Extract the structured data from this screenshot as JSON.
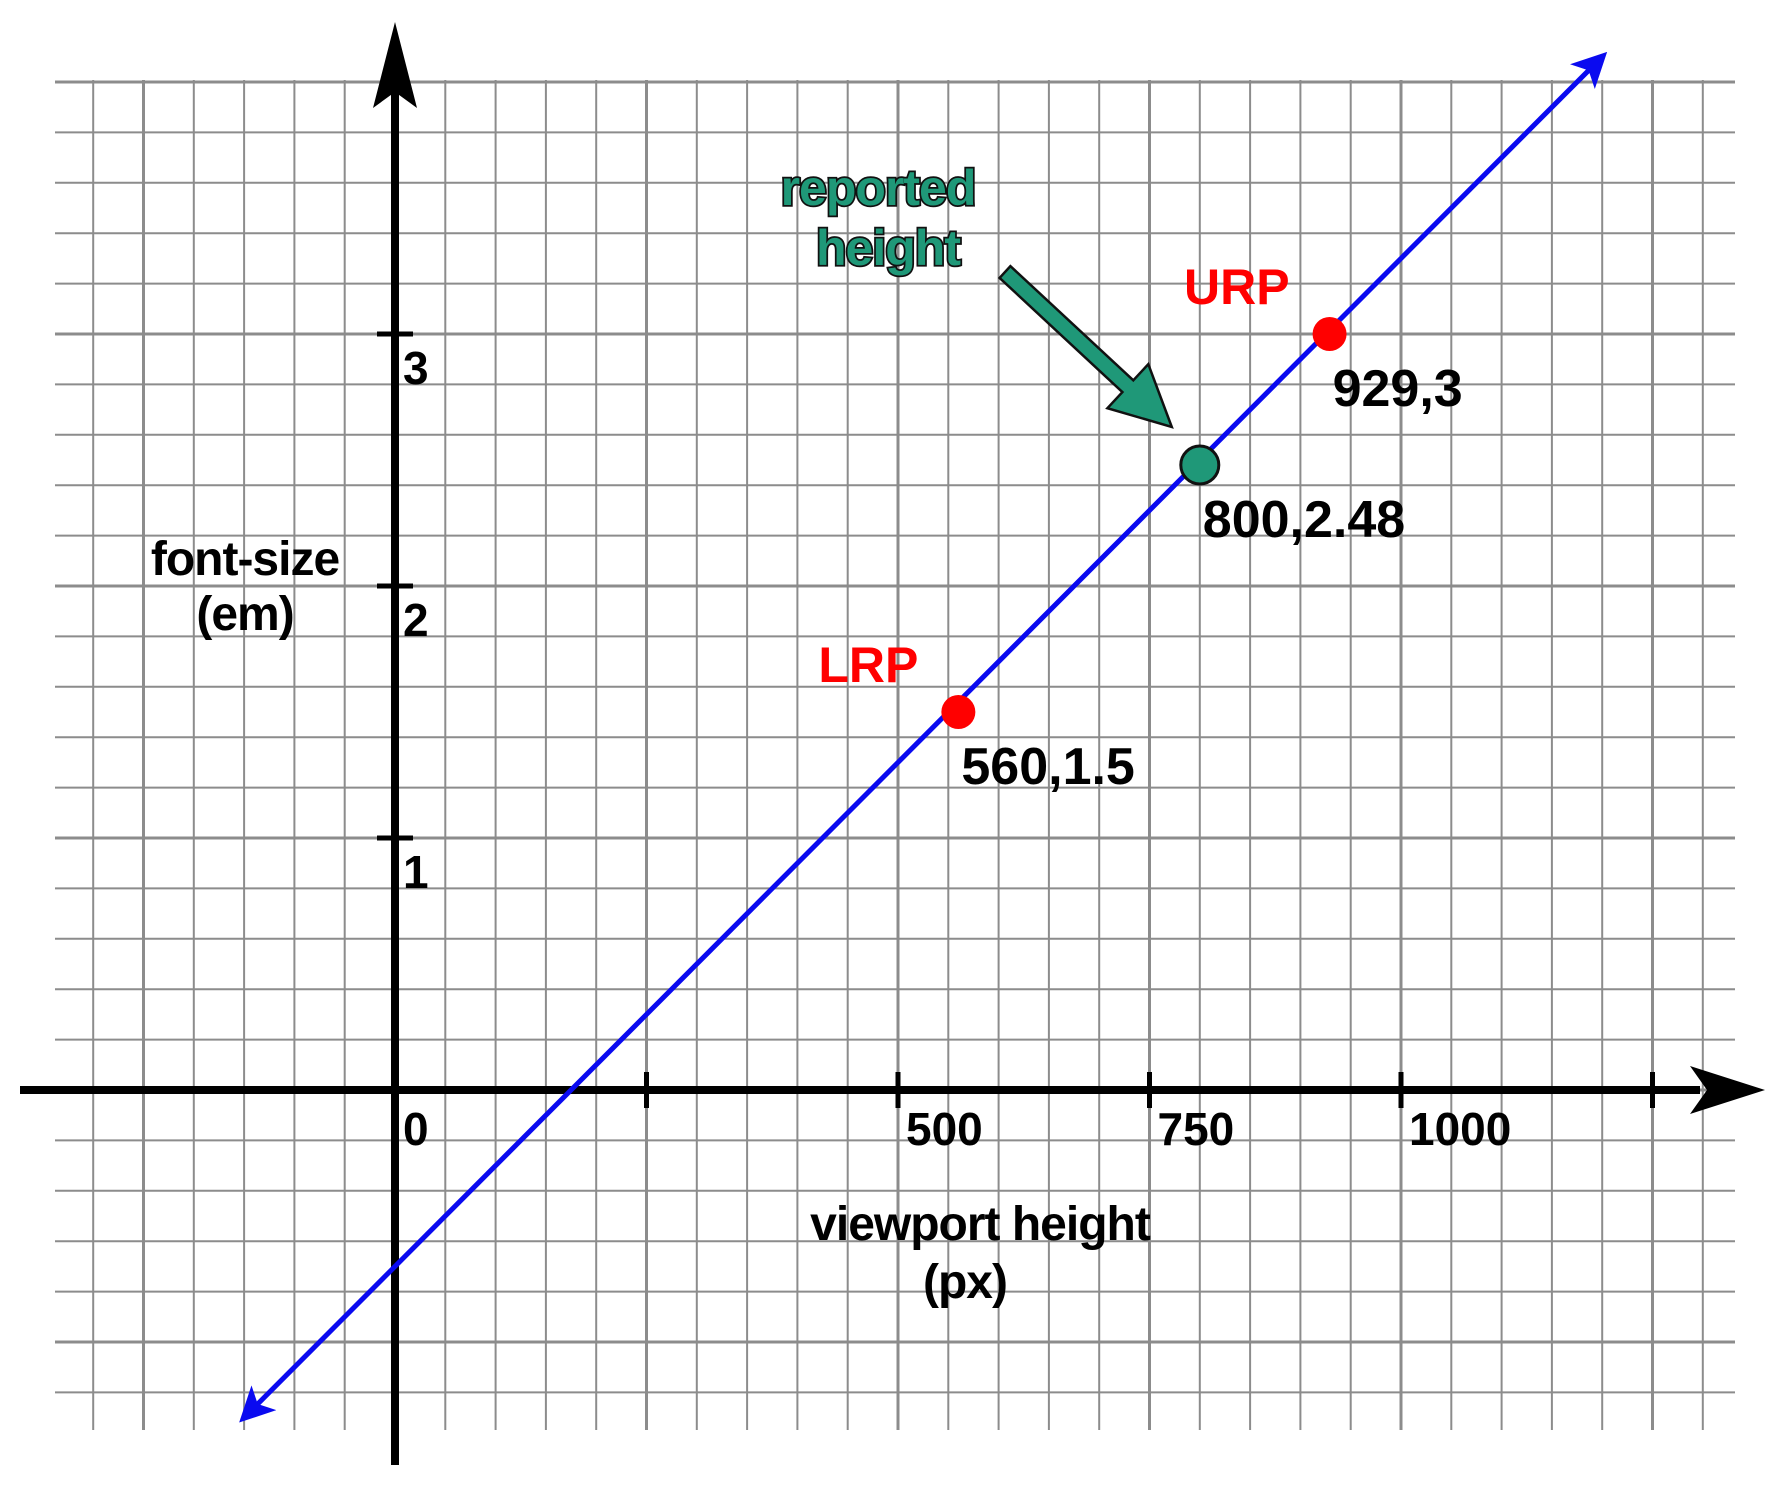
{
  "chart_data": {
    "type": "line",
    "title": "",
    "xlabel": [
      "viewport height",
      "(px)"
    ],
    "ylabel": [
      "font-size",
      "(em)"
    ],
    "x_ticks": [
      {
        "value": 0,
        "label": "0"
      },
      {
        "value": 250,
        "label": ""
      },
      {
        "value": 500,
        "label": "500"
      },
      {
        "value": 750,
        "label": "750"
      },
      {
        "value": 1000,
        "label": "1000"
      },
      {
        "value": 1250,
        "label": ""
      }
    ],
    "y_ticks": [
      {
        "value": 1,
        "label": "1"
      },
      {
        "value": 2,
        "label": "2"
      },
      {
        "value": 3,
        "label": "3"
      }
    ],
    "xlim": [
      -370,
      1360
    ],
    "ylim": [
      -1.5,
      4.15
    ],
    "grid": true,
    "line": {
      "color": "#0a0af0",
      "from": [
        -150,
        -1.3
      ],
      "to": [
        1200,
        4.1
      ],
      "points": [
        [
          560,
          1.5
        ],
        [
          929,
          3
        ]
      ]
    },
    "points": [
      {
        "x": 560,
        "y": 1.5,
        "label": "560,1.5",
        "tag": "LRP",
        "color": "#ff0000"
      },
      {
        "x": 929,
        "y": 3,
        "label": "929,3",
        "tag": "URP",
        "color": "#ff0000"
      },
      {
        "x": 800,
        "y": 2.48,
        "label": "800,2.48",
        "tag": "",
        "color": "#1f9878"
      }
    ],
    "annotation": {
      "text": [
        "reported",
        "height"
      ],
      "color": "#1f9878",
      "target": [
        800,
        2.48
      ]
    },
    "colors": {
      "axis": "#000000",
      "grid": "#8c8c8c",
      "line": "#0a0af0",
      "ref_point": "#ff0000",
      "reported_point": "#1f9878"
    }
  }
}
